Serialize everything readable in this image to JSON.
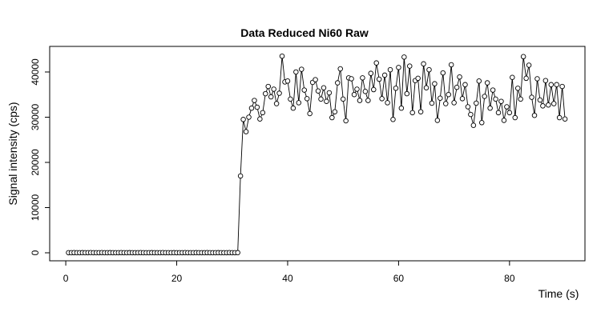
{
  "chart_data": {
    "type": "line",
    "title": "Data Reduced Ni60 Raw",
    "x_label": "Time (s)",
    "y_label": "Signal intensity (cps)",
    "color": "#000000",
    "markers": "open-circle",
    "xlim": [
      -2.9,
      93.6
    ],
    "ylim": [
      -1770,
      45660
    ],
    "xticks": [
      0,
      20,
      40,
      60,
      80
    ],
    "yticks": [
      0,
      10000,
      20000,
      30000,
      40000
    ],
    "x": [
      0.5,
      1,
      1.5,
      2,
      2.5,
      3,
      3.5,
      4,
      4.5,
      5,
      5.5,
      6,
      6.5,
      7,
      7.5,
      8,
      8.5,
      9,
      9.5,
      10,
      10.5,
      11,
      11.5,
      12,
      12.5,
      13,
      13.5,
      14,
      14.5,
      15,
      15.5,
      16,
      16.5,
      17,
      17.5,
      18,
      18.5,
      19,
      19.5,
      20,
      20.5,
      21,
      21.5,
      22,
      22.5,
      23,
      23.5,
      24,
      24.5,
      25,
      25.5,
      26,
      26.5,
      27,
      27.5,
      28,
      28.5,
      29,
      29.5,
      30,
      30.5,
      31,
      31.5,
      32,
      32.5,
      33,
      33.5,
      34,
      34.5,
      35,
      35.5,
      36,
      36.5,
      37,
      37.5,
      38,
      38.5,
      39,
      39.5,
      40,
      40.5,
      41,
      41.5,
      42,
      42.5,
      43,
      43.5,
      44,
      44.5,
      45,
      45.5,
      46,
      46.5,
      47,
      47.5,
      48,
      48.5,
      49,
      49.5,
      50,
      50.5,
      51,
      51.5,
      52,
      52.5,
      53,
      53.5,
      54,
      54.5,
      55,
      55.5,
      56,
      56.5,
      57,
      57.5,
      58,
      58.5,
      59,
      59.5,
      60,
      60.5,
      61,
      61.5,
      62,
      62.5,
      63,
      63.5,
      64,
      64.5,
      65,
      65.5,
      66,
      66.5,
      67,
      67.5,
      68,
      68.5,
      69,
      69.5,
      70,
      70.5,
      71,
      71.5,
      72,
      72.5,
      73,
      73.5,
      74,
      74.5,
      75,
      75.5,
      76,
      76.5,
      77,
      77.5,
      78,
      78.5,
      79,
      79.5,
      80,
      80.5,
      81,
      81.5,
      82,
      82.5,
      83,
      83.5,
      84,
      84.5,
      85,
      85.5,
      86,
      86.5,
      87,
      87.5,
      88,
      88.5,
      89,
      89.5,
      90
    ],
    "values": [
      30,
      20,
      40,
      25,
      30,
      35,
      20,
      30,
      45,
      30,
      25,
      30,
      40,
      20,
      30,
      35,
      30,
      25,
      30,
      40,
      30,
      20,
      35,
      30,
      30,
      25,
      40,
      30,
      20,
      30,
      35,
      30,
      25,
      30,
      40,
      30,
      30,
      20,
      35,
      30,
      25,
      30,
      40,
      30,
      20,
      30,
      35,
      30,
      30,
      25,
      40,
      30,
      20,
      30,
      35,
      30,
      25,
      30,
      40,
      30,
      30,
      35,
      17000,
      29500,
      26800,
      30000,
      32000,
      33700,
      32200,
      29600,
      31000,
      35200,
      36800,
      34500,
      36200,
      33000,
      35300,
      43500,
      37800,
      38000,
      34000,
      32000,
      40000,
      33200,
      40600,
      36000,
      34100,
      30800,
      37700,
      38300,
      35800,
      34000,
      36500,
      33500,
      35400,
      29900,
      31200,
      37600,
      40700,
      34000,
      29200,
      38700,
      38500,
      35000,
      36200,
      33700,
      38700,
      35700,
      33700,
      39700,
      36100,
      42000,
      38400,
      34100,
      39300,
      33200,
      40500,
      29500,
      36400,
      41000,
      32000,
      43300,
      35200,
      41300,
      31000,
      38100,
      38600,
      31200,
      41800,
      36500,
      40500,
      33100,
      37400,
      29300,
      34200,
      39800,
      33000,
      35000,
      41600,
      33200,
      36600,
      38900,
      34100,
      37200,
      32300,
      30600,
      28200,
      33100,
      38000,
      28800,
      34600,
      37600,
      32000,
      36000,
      34000,
      31000,
      33500,
      29300,
      32300,
      31000,
      38800,
      29900,
      36400,
      34000,
      43400,
      38600,
      41500,
      34400,
      30400,
      38500,
      33800,
      32500,
      38100,
      32700,
      37200,
      33000,
      37200,
      29900,
      36800,
      29600
    ]
  }
}
